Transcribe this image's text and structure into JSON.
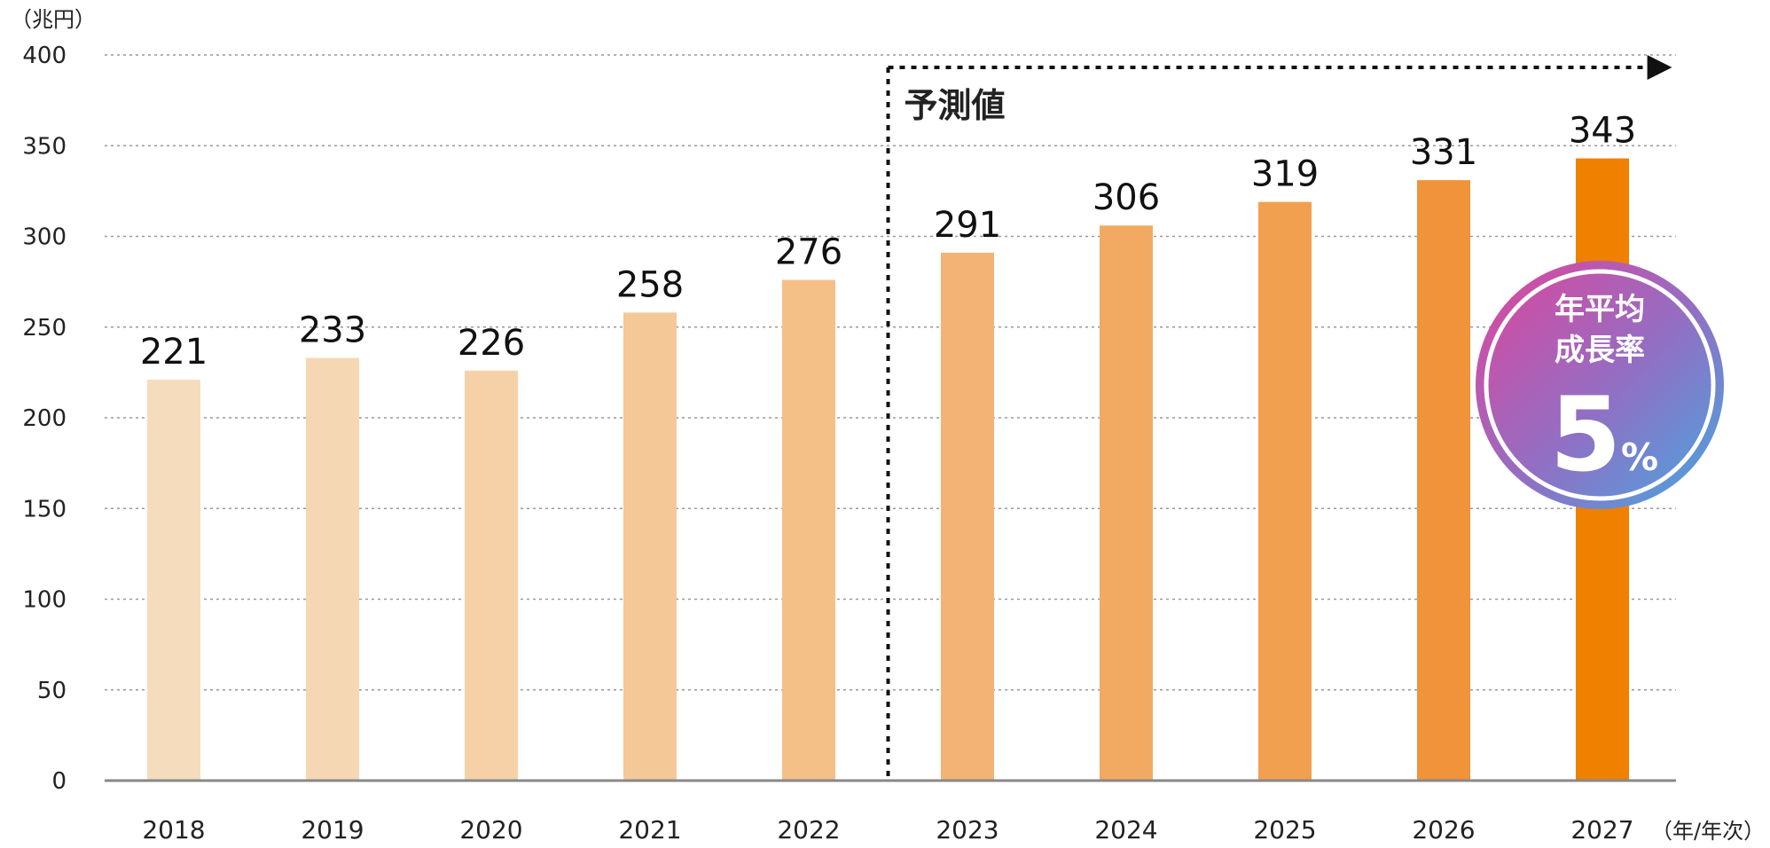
{
  "chart_data": {
    "type": "bar",
    "y_unit_label": "（兆円）",
    "x_unit_label": "（年/年次）",
    "categories": [
      "2018",
      "2019",
      "2020",
      "2021",
      "2022",
      "2023",
      "2024",
      "2025",
      "2026",
      "2027"
    ],
    "values": [
      221,
      233,
      226,
      258,
      276,
      291,
      306,
      319,
      331,
      343
    ],
    "bar_colors": [
      "#f5dcbd",
      "#f5d7b4",
      "#f6d1a8",
      "#f5c898",
      "#f4c088",
      "#f2b374",
      "#f2aa63",
      "#f1a04f",
      "#f0933a",
      "#ef8000"
    ],
    "ylim": [
      0,
      400
    ],
    "yticks": [
      0,
      50,
      100,
      150,
      200,
      250,
      300,
      350,
      400
    ],
    "grid": true,
    "grid_style": "dotted",
    "forecast": {
      "label": "予測値",
      "start_category": "2023"
    },
    "badge": {
      "line1": "年平均",
      "line2": "成長率",
      "value": "5",
      "suffix": "%",
      "gradient_colors": [
        "#e0449c",
        "#9070c4",
        "#45a8e0"
      ]
    },
    "colors": {
      "axis": "#888888",
      "grid": "#999999",
      "text": "#222222"
    }
  }
}
